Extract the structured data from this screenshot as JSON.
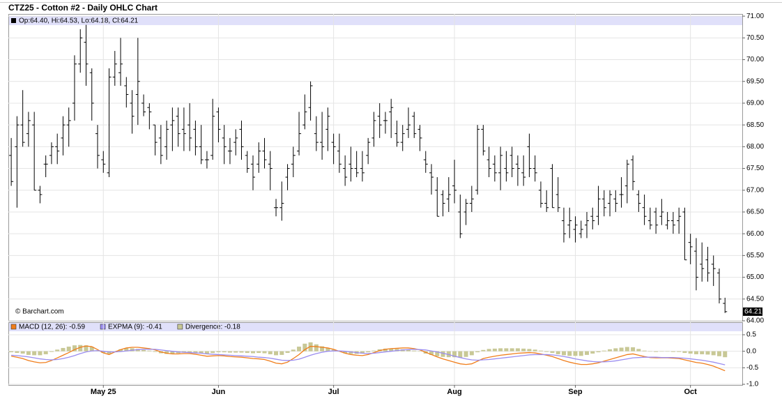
{
  "chart_data": [
    {
      "type": "ohlc",
      "title": "CTZ25 - Cotton #2 - Daily OHLC Chart",
      "ohlc_label": "Op:64.40, Hi:64.53, Lo:64.18, Cl:64.21",
      "credit": "© Barchart.com",
      "color": "#000000",
      "grid": true,
      "xlim": [
        -0.5,
        127
      ],
      "ylim": [
        64,
        71.05
      ],
      "yticks": [
        {
          "value": 64,
          "label": "64.00"
        },
        {
          "value": 64.5,
          "label": "64.50"
        },
        {
          "value": 65,
          "label": "65.00"
        },
        {
          "value": 65.5,
          "label": "65.50"
        },
        {
          "value": 66,
          "label": "66.00"
        },
        {
          "value": 66.5,
          "label": "66.50"
        },
        {
          "value": 67,
          "label": "67.00"
        },
        {
          "value": 67.5,
          "label": "67.50"
        },
        {
          "value": 68,
          "label": "68.00"
        },
        {
          "value": 68.5,
          "label": "68.50"
        },
        {
          "value": 69,
          "label": "69.00"
        },
        {
          "value": 69.5,
          "label": "69.50"
        },
        {
          "value": 70,
          "label": "70.00"
        },
        {
          "value": 70.5,
          "label": "70.50"
        },
        {
          "value": 71,
          "label": "71.00"
        }
      ],
      "open": [
        67.8,
        68.0,
        68.5,
        68.3,
        68.5,
        67.0,
        67.6,
        67.8,
        68.0,
        68.2,
        68.5,
        69.0,
        69.9,
        70.4,
        69.7,
        68.3,
        67.7,
        67.4,
        69.6,
        69.7,
        69.4,
        69.0,
        69.2,
        69.0,
        68.9,
        68.5,
        68.2,
        68.0,
        68.5,
        68.7,
        68.4,
        68.5,
        68.4,
        68.0,
        67.7,
        67.8,
        68.8,
        68.2,
        67.9,
        68.1,
        68.4,
        67.8,
        67.6,
        67.6,
        67.9,
        67.6,
        66.6,
        66.6,
        67.3,
        67.6,
        67.9,
        68.5,
        68.9,
        68.3,
        68.1,
        68.4,
        68.1,
        67.9,
        67.5,
        67.6,
        67.5,
        67.5,
        67.8,
        68.2,
        68.7,
        68.6,
        68.8,
        68.3,
        68.1,
        68.4,
        68.7,
        68.4,
        67.7,
        67.4,
        67.0,
        66.9,
        66.8,
        67.1,
        66.5,
        66.5,
        66.7,
        67.0,
        68.4,
        67.7,
        67.6,
        67.4,
        67.5,
        67.8,
        67.6,
        67.4,
        68.0,
        67.5,
        67.0,
        66.7,
        67.5,
        66.9,
        66.3,
        66.2,
        66.1,
        66.0,
        66.2,
        66.4,
        66.4,
        66.8,
        66.7,
        66.8,
        66.9,
        67.1,
        67.7,
        66.9,
        66.6,
        66.3,
        66.5,
        66.4,
        66.2,
        66.3,
        66.3,
        66.5,
        65.8,
        65.6,
        65.3,
        65.4,
        65.3,
        65.1,
        64.4
      ],
      "high": [
        68.2,
        68.7,
        69.3,
        68.8,
        68.8,
        67.1,
        67.8,
        68.1,
        68.3,
        68.7,
        68.9,
        70.1,
        70.7,
        70.8,
        69.8,
        68.5,
        67.9,
        69.8,
        70.2,
        70.5,
        69.6,
        69.3,
        70.5,
        69.2,
        69.0,
        68.5,
        68.5,
        68.6,
        68.9,
        68.9,
        68.9,
        69.0,
        68.6,
        68.5,
        67.9,
        69.1,
        68.9,
        68.5,
        68.2,
        68.4,
        68.6,
        67.9,
        67.8,
        68.1,
        68.2,
        67.9,
        66.8,
        67.2,
        67.6,
        68.0,
        68.8,
        69.2,
        69.5,
        68.7,
        68.8,
        68.9,
        68.3,
        68.3,
        67.8,
        68.0,
        67.9,
        67.9,
        68.2,
        68.8,
        69.0,
        68.8,
        69.1,
        68.6,
        68.5,
        68.9,
        68.8,
        68.5,
        67.9,
        67.6,
        67.3,
        67.0,
        67.3,
        67.7,
        66.9,
        66.8,
        67.1,
        68.5,
        68.5,
        68.0,
        67.8,
        68.0,
        67.9,
        68.0,
        67.8,
        67.8,
        68.3,
        67.8,
        67.2,
        67.0,
        67.6,
        67.3,
        66.6,
        66.6,
        66.4,
        66.3,
        66.5,
        66.6,
        67.1,
        67.0,
        67.0,
        67.0,
        67.3,
        67.7,
        67.8,
        67.0,
        66.9,
        66.6,
        66.6,
        66.8,
        66.5,
        66.5,
        66.6,
        66.6,
        66.0,
        65.9,
        65.8,
        65.7,
        65.5,
        65.2,
        64.53
      ],
      "low": [
        67.1,
        66.6,
        68.0,
        68.0,
        67.0,
        66.7,
        67.3,
        67.6,
        67.6,
        67.8,
        68.0,
        68.6,
        69.7,
        69.4,
        68.6,
        67.5,
        67.4,
        67.3,
        69.4,
        69.4,
        68.9,
        68.3,
        68.5,
        68.7,
        68.4,
        67.8,
        67.6,
        67.7,
        67.9,
        68.0,
        67.9,
        67.9,
        67.8,
        67.6,
        67.5,
        67.7,
        68.1,
        67.6,
        67.6,
        67.8,
        67.7,
        67.4,
        67.0,
        67.4,
        67.5,
        67.0,
        66.4,
        66.3,
        67.0,
        67.3,
        67.8,
        68.4,
        68.6,
        67.9,
        67.7,
        67.9,
        67.6,
        67.4,
        67.1,
        67.2,
        67.3,
        67.2,
        67.6,
        68.0,
        68.2,
        68.3,
        68.2,
        68.0,
        67.9,
        68.2,
        68.2,
        67.9,
        67.4,
        66.9,
        66.4,
        66.4,
        66.5,
        66.7,
        65.9,
        66.2,
        66.5,
        66.9,
        67.8,
        67.3,
        67.2,
        67.0,
        67.2,
        67.3,
        67.1,
        67.1,
        67.3,
        67.2,
        66.6,
        66.5,
        66.6,
        66.5,
        65.8,
        65.9,
        65.8,
        65.9,
        65.9,
        66.1,
        66.2,
        66.4,
        66.4,
        66.5,
        66.6,
        66.7,
        67.0,
        66.5,
        66.2,
        66.1,
        66.0,
        66.2,
        66.1,
        66.0,
        66.0,
        65.4,
        65.3,
        64.7,
        64.9,
        64.9,
        64.8,
        64.4,
        64.18
      ],
      "close": [
        67.2,
        68.5,
        68.1,
        68.6,
        67.0,
        66.9,
        67.6,
        68.0,
        67.9,
        68.5,
        68.6,
        69.9,
        70.5,
        69.9,
        69.0,
        67.8,
        67.6,
        69.6,
        69.9,
        69.9,
        69.2,
        68.7,
        69.5,
        68.8,
        68.8,
        68.1,
        67.8,
        68.4,
        68.6,
        68.3,
        68.3,
        68.2,
        68.0,
        67.7,
        67.7,
        68.7,
        68.4,
        68.0,
        67.9,
        68.2,
        68.0,
        67.5,
        67.3,
        67.9,
        67.7,
        67.5,
        66.6,
        66.7,
        67.5,
        67.8,
        68.3,
        68.8,
        69.4,
        68.1,
        68.0,
        68.7,
        68.0,
        67.6,
        67.3,
        67.5,
        67.4,
        67.4,
        68.1,
        68.6,
        68.5,
        68.6,
        68.9,
        68.1,
        68.3,
        68.5,
        68.3,
        68.2,
        67.6,
        67.3,
        66.4,
        66.7,
        66.9,
        67.0,
        66.0,
        66.7,
        66.8,
        68.4,
        67.9,
        67.5,
        67.4,
        67.8,
        67.4,
        67.5,
        67.5,
        67.3,
        67.5,
        67.4,
        66.7,
        66.6,
        66.6,
        66.6,
        66.0,
        66.3,
        66.2,
        66.1,
        66.3,
        66.3,
        66.8,
        66.6,
        66.9,
        66.7,
        66.9,
        67.6,
        67.2,
        66.7,
        66.4,
        66.2,
        66.2,
        66.5,
        66.3,
        66.2,
        66.4,
        65.4,
        65.7,
        65.0,
        65.2,
        65.1,
        65.2,
        64.5,
        64.21
      ]
    },
    {
      "type": "macd",
      "grid": true,
      "xlim": [
        -0.5,
        127
      ],
      "ylim": [
        -1.02,
        0.88
      ],
      "yticks": [
        {
          "value": 0.5,
          "label": "0.5"
        },
        {
          "value": 0,
          "label": "0.0"
        },
        {
          "value": -0.5,
          "label": "-0.5"
        },
        {
          "value": -1,
          "label": "-1.0"
        }
      ],
      "xticks": [
        {
          "value": 16,
          "label": "May 25"
        },
        {
          "value": 36,
          "label": "Jun"
        },
        {
          "value": 56,
          "label": "Jul"
        },
        {
          "value": 77,
          "label": "Aug"
        },
        {
          "value": 98,
          "label": "Sep"
        },
        {
          "value": 118,
          "label": "Oct"
        }
      ],
      "series": [
        {
          "name": "MACD (12, 26): -0.59",
          "color": "#f07d1a",
          "kind": "line",
          "values": [
            -0.15,
            -0.18,
            -0.22,
            -0.28,
            -0.32,
            -0.35,
            -0.34,
            -0.28,
            -0.2,
            -0.12,
            -0.04,
            0.05,
            0.12,
            0.16,
            0.14,
            0.05,
            -0.05,
            -0.1,
            -0.02,
            0.05,
            0.1,
            0.12,
            0.12,
            0.1,
            0.08,
            0.04,
            -0.02,
            -0.06,
            -0.08,
            -0.08,
            -0.07,
            -0.07,
            -0.09,
            -0.12,
            -0.15,
            -0.14,
            -0.13,
            -0.14,
            -0.16,
            -0.17,
            -0.18,
            -0.2,
            -0.22,
            -0.23,
            -0.25,
            -0.3,
            -0.36,
            -0.38,
            -0.33,
            -0.22,
            -0.1,
            0.05,
            0.15,
            0.14,
            0.12,
            0.1,
            0.06,
            0.0,
            -0.06,
            -0.1,
            -0.12,
            -0.13,
            -0.1,
            -0.04,
            0.02,
            0.06,
            0.08,
            0.09,
            0.1,
            0.1,
            0.08,
            0.04,
            -0.03,
            -0.1,
            -0.17,
            -0.23,
            -0.28,
            -0.33,
            -0.38,
            -0.4,
            -0.38,
            -0.3,
            -0.22,
            -0.18,
            -0.15,
            -0.12,
            -0.1,
            -0.08,
            -0.06,
            -0.05,
            -0.04,
            -0.05,
            -0.08,
            -0.12,
            -0.16,
            -0.22,
            -0.28,
            -0.33,
            -0.37,
            -0.4,
            -0.4,
            -0.38,
            -0.35,
            -0.3,
            -0.25,
            -0.2,
            -0.15,
            -0.1,
            -0.08,
            -0.12,
            -0.16,
            -0.19,
            -0.2,
            -0.2,
            -0.2,
            -0.21,
            -0.22,
            -0.26,
            -0.3,
            -0.34,
            -0.36,
            -0.4,
            -0.45,
            -0.52,
            -0.59
          ]
        },
        {
          "name": "EXPMA (9): -0.41",
          "color": "#9a8cf0",
          "kind": "line",
          "values": [
            -0.12,
            -0.13,
            -0.15,
            -0.17,
            -0.2,
            -0.23,
            -0.25,
            -0.26,
            -0.25,
            -0.22,
            -0.18,
            -0.13,
            -0.07,
            -0.02,
            0.01,
            0.02,
            0.0,
            -0.02,
            -0.02,
            -0.01,
            0.01,
            0.03,
            0.05,
            0.06,
            0.06,
            0.06,
            0.04,
            0.02,
            0.0,
            -0.02,
            -0.03,
            -0.04,
            -0.05,
            -0.06,
            -0.08,
            -0.09,
            -0.1,
            -0.11,
            -0.12,
            -0.13,
            -0.14,
            -0.15,
            -0.16,
            -0.18,
            -0.19,
            -0.21,
            -0.24,
            -0.27,
            -0.28,
            -0.27,
            -0.24,
            -0.18,
            -0.12,
            -0.07,
            -0.03,
            0.0,
            0.01,
            0.01,
            0.0,
            -0.02,
            -0.04,
            -0.06,
            -0.07,
            -0.06,
            -0.04,
            -0.02,
            0.0,
            0.02,
            0.04,
            0.05,
            0.06,
            0.05,
            0.04,
            0.01,
            -0.02,
            -0.06,
            -0.1,
            -0.15,
            -0.19,
            -0.23,
            -0.26,
            -0.27,
            -0.26,
            -0.25,
            -0.23,
            -0.21,
            -0.19,
            -0.17,
            -0.15,
            -0.13,
            -0.11,
            -0.1,
            -0.1,
            -0.1,
            -0.11,
            -0.13,
            -0.16,
            -0.19,
            -0.23,
            -0.26,
            -0.29,
            -0.31,
            -0.32,
            -0.32,
            -0.31,
            -0.29,
            -0.26,
            -0.23,
            -0.2,
            -0.19,
            -0.18,
            -0.18,
            -0.18,
            -0.19,
            -0.19,
            -0.19,
            -0.2,
            -0.21,
            -0.23,
            -0.25,
            -0.27,
            -0.3,
            -0.33,
            -0.37,
            -0.41
          ]
        },
        {
          "name": "Divergence: -0.18",
          "color": "#c8c896",
          "kind": "bar",
          "values": [
            -0.03,
            -0.05,
            -0.07,
            -0.11,
            -0.12,
            -0.12,
            -0.09,
            -0.02,
            0.05,
            0.1,
            0.14,
            0.18,
            0.19,
            0.18,
            0.13,
            0.03,
            -0.05,
            -0.08,
            0.0,
            0.06,
            0.09,
            0.09,
            0.07,
            0.04,
            0.02,
            -0.02,
            -0.06,
            -0.08,
            -0.08,
            -0.06,
            -0.04,
            -0.03,
            -0.04,
            -0.06,
            -0.07,
            -0.05,
            -0.03,
            -0.03,
            -0.04,
            -0.04,
            -0.04,
            -0.05,
            -0.06,
            -0.05,
            -0.06,
            -0.09,
            -0.12,
            -0.11,
            -0.05,
            0.05,
            0.14,
            0.23,
            0.27,
            0.21,
            0.15,
            0.1,
            0.05,
            -0.01,
            -0.06,
            -0.08,
            -0.08,
            -0.07,
            -0.03,
            0.02,
            0.06,
            0.08,
            0.08,
            0.07,
            0.06,
            0.05,
            0.02,
            -0.01,
            -0.07,
            -0.11,
            -0.15,
            -0.17,
            -0.18,
            -0.18,
            -0.19,
            -0.17,
            -0.12,
            -0.03,
            0.04,
            0.07,
            0.08,
            0.09,
            0.09,
            0.09,
            0.09,
            0.08,
            0.07,
            0.05,
            0.02,
            -0.02,
            -0.05,
            -0.09,
            -0.12,
            -0.14,
            -0.14,
            -0.14,
            -0.11,
            -0.07,
            -0.03,
            0.02,
            0.06,
            0.09,
            0.11,
            0.13,
            0.12,
            0.07,
            0.02,
            -0.01,
            -0.02,
            -0.01,
            -0.01,
            -0.02,
            -0.02,
            -0.05,
            -0.07,
            -0.09,
            -0.09,
            -0.1,
            -0.12,
            -0.15,
            -0.18
          ]
        }
      ]
    }
  ]
}
